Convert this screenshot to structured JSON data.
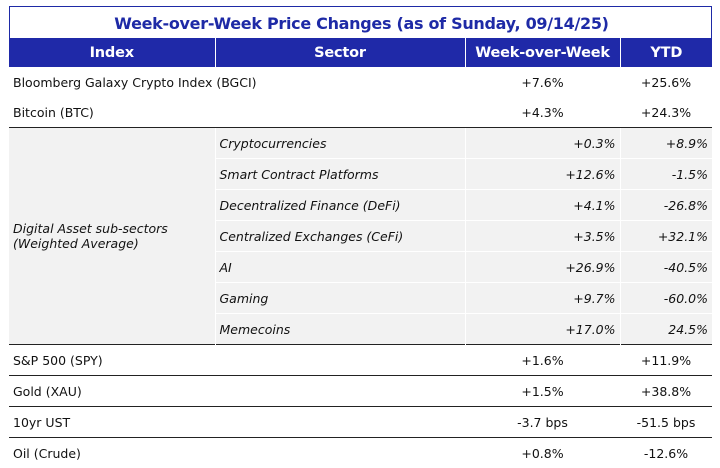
{
  "title": "Week-over-Week Price Changes (as of Sunday, 09/14/25)",
  "headers": {
    "index": "Index",
    "sector": "Sector",
    "wow": "Week-over-Week",
    "ytd": "YTD"
  },
  "top_rows": [
    {
      "index": "Bloomberg Galaxy Crypto Index (BGCI)",
      "wow": "+7.6%",
      "ytd": "+25.6%"
    },
    {
      "index": "Bitcoin (BTC)",
      "wow": "+4.3%",
      "ytd": "+24.3%"
    }
  ],
  "subsector_group": {
    "label": "Digital Asset sub-sectors (Weighted Average)",
    "rows": [
      {
        "sector": "Cryptocurrencies",
        "wow": "+0.3%",
        "ytd": "+8.9%"
      },
      {
        "sector": "Smart Contract Platforms",
        "wow": "+12.6%",
        "ytd": "-1.5%"
      },
      {
        "sector": "Decentralized Finance (DeFi)",
        "wow": "+4.1%",
        "ytd": "-26.8%"
      },
      {
        "sector": "Centralized Exchanges (CeFi)",
        "wow": "+3.5%",
        "ytd": "+32.1%"
      },
      {
        "sector": "AI",
        "wow": "+26.9%",
        "ytd": "-40.5%"
      },
      {
        "sector": "Gaming",
        "wow": "+9.7%",
        "ytd": "-60.0%"
      },
      {
        "sector": "Memecoins",
        "wow": "+17.0%",
        "ytd": "24.5%"
      }
    ]
  },
  "bottom_rows": [
    {
      "index": "S&P 500 (SPY)",
      "wow": "+1.6%",
      "ytd": "+11.9%"
    },
    {
      "index": "Gold (XAU)",
      "wow": "+1.5%",
      "ytd": "+38.8%"
    },
    {
      "index": "10yr UST",
      "wow": "-3.7 bps",
      "ytd": "-51.5 bps"
    },
    {
      "index": "Oil (Crude)",
      "wow": "+0.8%",
      "ytd": "-12.6%"
    }
  ],
  "colors": {
    "header_bg": "#1f29a8",
    "title": "#1e2aa6",
    "subsector_bg": "#f2f2f2"
  }
}
